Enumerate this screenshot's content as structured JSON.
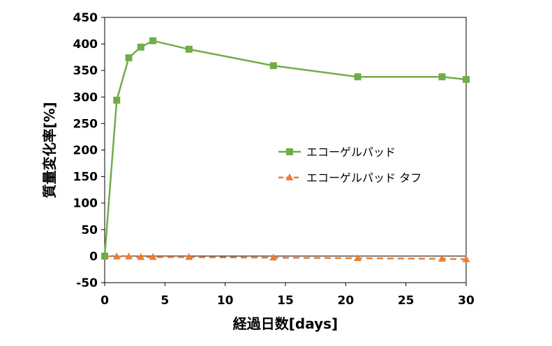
{
  "chart_data": {
    "type": "line",
    "title": "",
    "xlabel": "経過日数[days]",
    "ylabel": "質量変化率[%]",
    "xlim": [
      0,
      30
    ],
    "ylim": [
      -50,
      450
    ],
    "xticks": [
      0,
      5,
      10,
      15,
      20,
      25,
      30
    ],
    "yticks": [
      -50,
      0,
      50,
      100,
      150,
      200,
      250,
      300,
      350,
      400,
      450
    ],
    "grid": false,
    "legend_position": "right",
    "series": [
      {
        "name": "エコーゲルパッド",
        "color": "#70ad47",
        "marker": "square",
        "line_style": "solid",
        "x": [
          0,
          1,
          2,
          3,
          4,
          7,
          14,
          21,
          28,
          30
        ],
        "y": [
          0,
          294,
          374,
          394,
          406,
          390,
          359,
          338,
          338,
          333
        ]
      },
      {
        "name": "エコーゲルパッド タフ",
        "color": "#ed7d31",
        "marker": "triangle",
        "line_style": "dashed",
        "x": [
          0,
          1,
          2,
          3,
          4,
          7,
          14,
          21,
          28,
          30
        ],
        "y": [
          0,
          -1,
          -1,
          -2,
          -2,
          -2,
          -3,
          -4,
          -5,
          -6
        ]
      }
    ]
  }
}
